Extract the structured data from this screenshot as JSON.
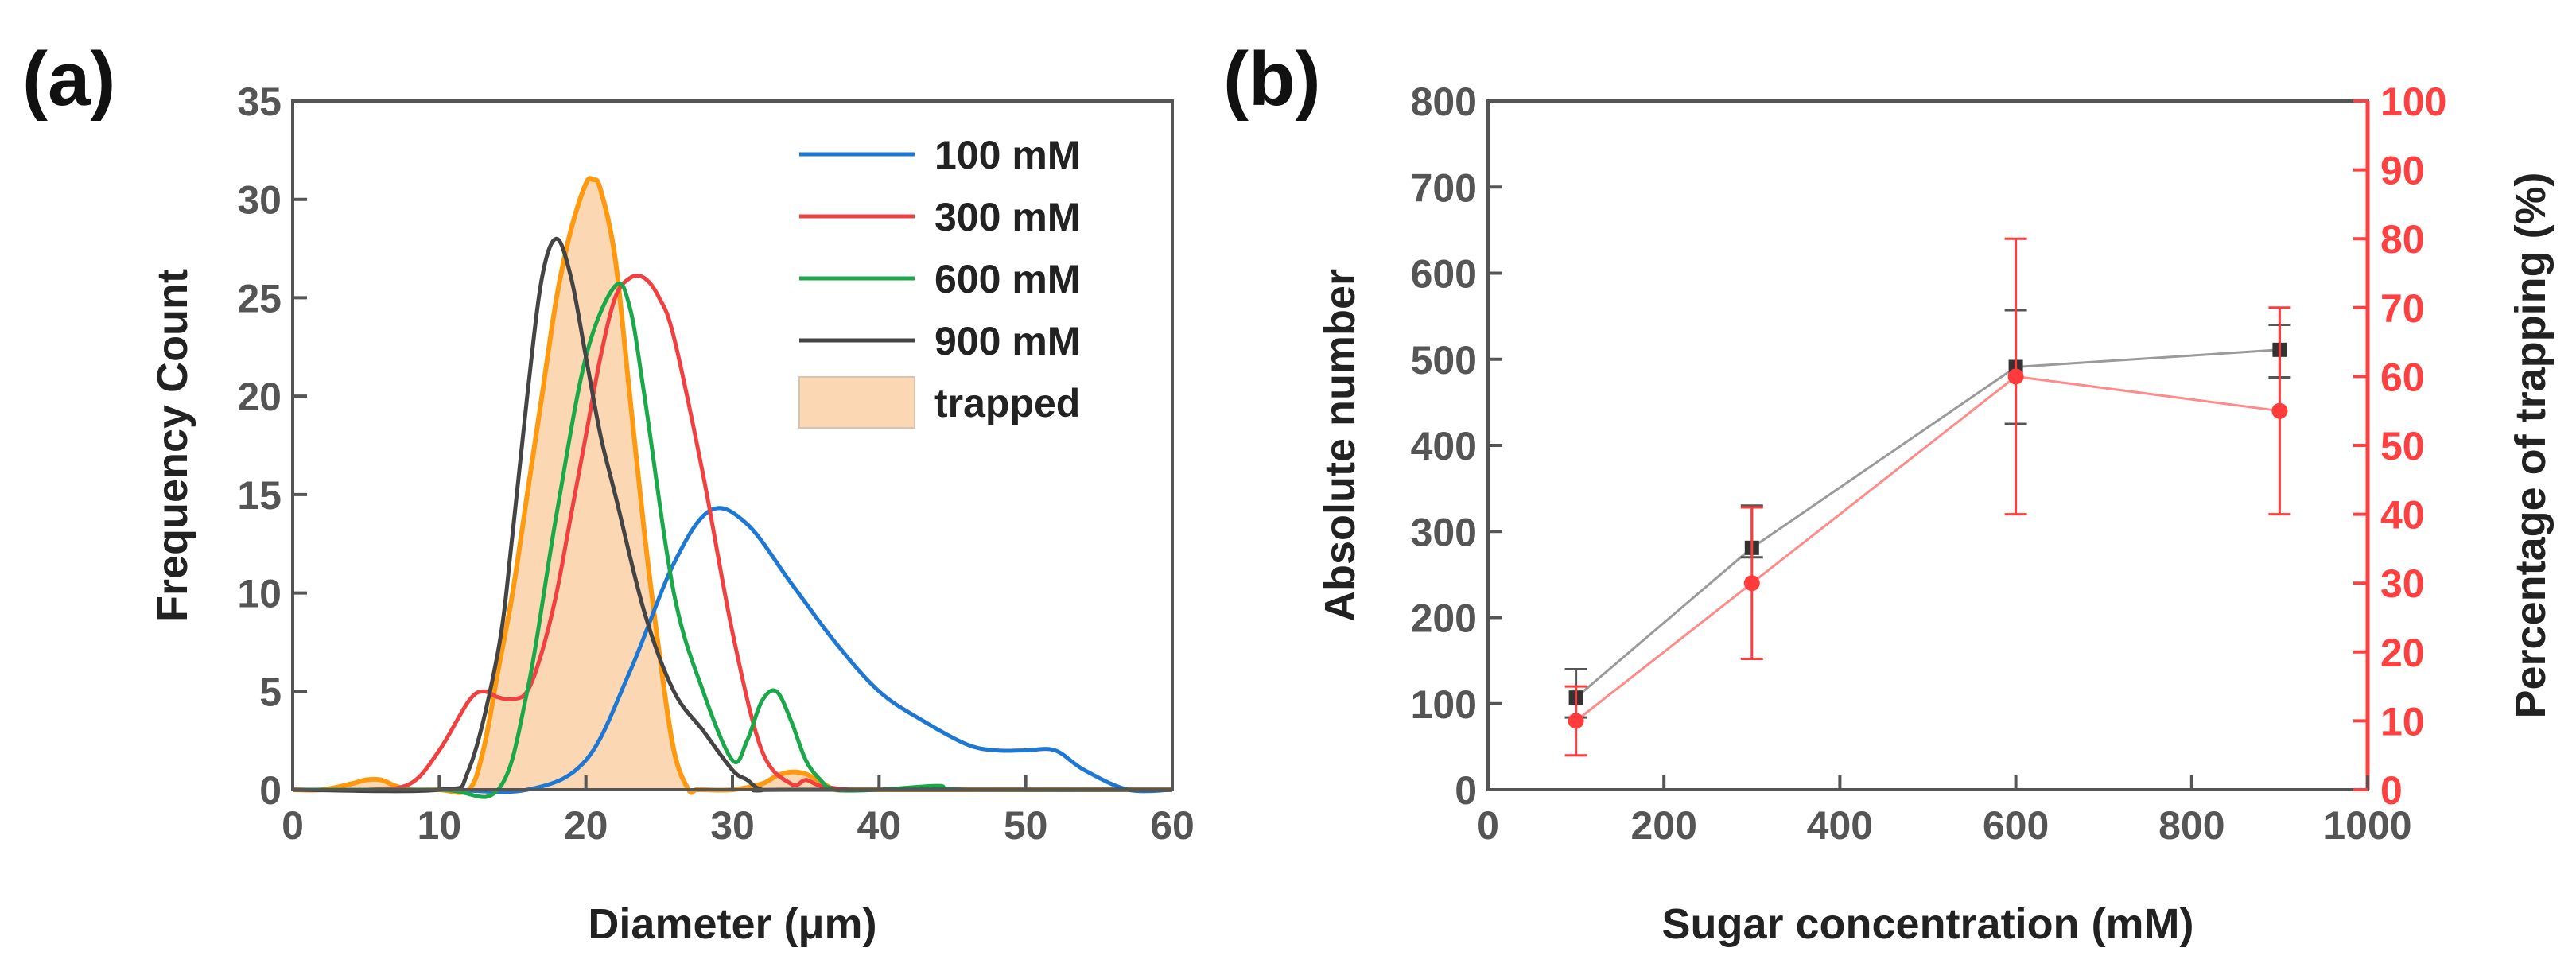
{
  "chart_data": [
    {
      "panel": "(a)",
      "type": "line",
      "xlabel": "Diameter (μm)",
      "ylabel": "Frequency Count",
      "xlim": [
        0,
        60
      ],
      "ylim": [
        0,
        35
      ],
      "xticks": [
        0,
        10,
        20,
        30,
        40,
        50,
        60
      ],
      "yticks": [
        0,
        5,
        10,
        15,
        20,
        25,
        30,
        35
      ],
      "legend_position": "top-right",
      "series": [
        {
          "name": "100 mM",
          "color": "#1f77d4",
          "x": [
            0,
            10,
            16,
            20,
            23,
            26,
            28.5,
            31,
            34,
            37,
            40,
            43,
            46,
            48,
            50,
            52,
            54,
            57,
            60
          ],
          "y": [
            0,
            0,
            0,
            1.5,
            6,
            11.5,
            14.2,
            13.5,
            10.5,
            7.5,
            5,
            3.5,
            2.3,
            2,
            2,
            2,
            1,
            0,
            0
          ]
        },
        {
          "name": "300 mM",
          "color": "#f04040",
          "x": [
            0,
            5,
            8,
            10,
            12,
            13,
            14,
            15,
            16,
            17,
            18,
            19,
            20,
            21,
            22,
            23,
            24,
            25,
            26,
            28,
            30,
            32,
            34,
            35,
            36,
            38,
            40,
            60
          ],
          "y": [
            0,
            0,
            0.3,
            2,
            4.5,
            5,
            4.7,
            4.6,
            5,
            7,
            10,
            14,
            18,
            22,
            25,
            26,
            26,
            25,
            23,
            16,
            8,
            2,
            0.3,
            0.5,
            0.2,
            0,
            0,
            0
          ]
        },
        {
          "name": "600 mM",
          "color": "#1aa84a",
          "x": [
            0,
            10,
            14,
            16,
            18,
            20,
            22,
            23,
            24,
            26,
            28,
            30,
            31,
            32,
            33,
            34,
            35,
            36,
            37,
            40,
            44,
            46,
            60
          ],
          "y": [
            0,
            0,
            0,
            5,
            14,
            22,
            25.6,
            24.5,
            20,
            10,
            5,
            1.5,
            2.5,
            4.5,
            5,
            3.5,
            1.5,
            0.5,
            0,
            0,
            0.2,
            0,
            0
          ]
        },
        {
          "name": "900 mM",
          "color": "#444444",
          "x": [
            0,
            10,
            12,
            14,
            15,
            16,
            17,
            18,
            19,
            20,
            21,
            22,
            24,
            26,
            28,
            30,
            31,
            32,
            34,
            60
          ],
          "y": [
            0,
            0,
            1,
            7,
            13,
            20,
            26,
            28,
            26,
            22,
            18,
            15,
            9,
            5,
            3,
            1,
            0.5,
            0,
            0,
            0
          ]
        }
      ],
      "trapped": {
        "name": "trapped",
        "edge_color": "#ff9a10",
        "fill_color": "#fbd7b3",
        "x": [
          0,
          2,
          4,
          5,
          6,
          7,
          8,
          10,
          12,
          13,
          14,
          15,
          16,
          17,
          18,
          19,
          20,
          20.5,
          21,
          22,
          23,
          24,
          25,
          26,
          27,
          27.5,
          28,
          30,
          32,
          33,
          34,
          35,
          36,
          37,
          38,
          40,
          60
        ],
        "y": [
          0,
          0,
          0.3,
          0.5,
          0.5,
          0.2,
          0,
          0,
          0,
          2,
          6,
          10,
          15,
          20,
          25,
          28.5,
          30.8,
          31,
          30.5,
          27,
          20,
          13,
          7,
          2,
          0,
          0,
          0,
          0,
          0.3,
          0.7,
          0.9,
          0.8,
          0.4,
          0,
          0,
          0,
          0
        ]
      }
    },
    {
      "panel": "(b)",
      "type": "scatter",
      "xlabel": "Sugar concentration (mM)",
      "ylabel": "Absolute number",
      "y2label": "Percentage of trapping (%)",
      "xlim": [
        0,
        1000
      ],
      "ylim": [
        0,
        800
      ],
      "y2lim": [
        0,
        100
      ],
      "xticks": [
        0,
        200,
        400,
        600,
        800,
        1000
      ],
      "yticks": [
        0,
        100,
        200,
        300,
        400,
        500,
        600,
        700,
        800
      ],
      "y2ticks": [
        0,
        10,
        20,
        30,
        40,
        50,
        60,
        70,
        80,
        90,
        100
      ],
      "series": [
        {
          "name": "Absolute number",
          "axis": "left",
          "color": "#555555",
          "marker": "square",
          "x": [
            100,
            300,
            600,
            900
          ],
          "y": [
            107,
            281,
            491,
            511
          ],
          "err_low": [
            84,
            270,
            425,
            479
          ],
          "err_high": [
            140,
            330,
            557,
            540
          ]
        },
        {
          "name": "Percentage of trapping",
          "axis": "right",
          "color": "#ff3b3b",
          "marker": "circle",
          "x": [
            100,
            300,
            600,
            900
          ],
          "y": [
            10,
            30,
            60,
            55
          ],
          "err_low": [
            5,
            19,
            40,
            40
          ],
          "err_high": [
            15,
            41,
            80,
            70
          ]
        }
      ]
    }
  ],
  "colors": {
    "axis_gray": "#555555",
    "accent_red": "#ff4040"
  }
}
